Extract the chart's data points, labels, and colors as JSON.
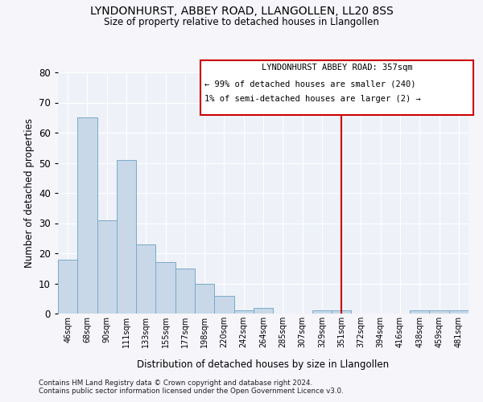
{
  "title": "LYNDONHURST, ABBEY ROAD, LLANGOLLEN, LL20 8SS",
  "subtitle": "Size of property relative to detached houses in Llangollen",
  "xlabel": "Distribution of detached houses by size in Llangollen",
  "ylabel": "Number of detached properties",
  "categories": [
    "46sqm",
    "68sqm",
    "90sqm",
    "111sqm",
    "133sqm",
    "155sqm",
    "177sqm",
    "198sqm",
    "220sqm",
    "242sqm",
    "264sqm",
    "285sqm",
    "307sqm",
    "329sqm",
    "351sqm",
    "372sqm",
    "394sqm",
    "416sqm",
    "438sqm",
    "459sqm",
    "481sqm"
  ],
  "values": [
    18,
    65,
    31,
    51,
    23,
    17,
    15,
    10,
    6,
    1,
    2,
    0,
    0,
    1,
    1,
    0,
    0,
    0,
    1,
    1,
    1
  ],
  "bar_color": "#c8d8e8",
  "bar_edge_color": "#7aaac8",
  "ylim": [
    0,
    80
  ],
  "yticks": [
    0,
    10,
    20,
    30,
    40,
    50,
    60,
    70,
    80
  ],
  "vline_x": 14,
  "vline_color": "#cc0000",
  "annotation_title": "LYNDONHURST ABBEY ROAD: 357sqm",
  "annotation_line2": "← 99% of detached houses are smaller (240)",
  "annotation_line3": "1% of semi-detached houses are larger (2) →",
  "annotation_box_color": "#cc0000",
  "background_color": "#eef2f8",
  "fig_background": "#f5f5fa",
  "footer1": "Contains HM Land Registry data © Crown copyright and database right 2024.",
  "footer2": "Contains public sector information licensed under the Open Government Licence v3.0."
}
